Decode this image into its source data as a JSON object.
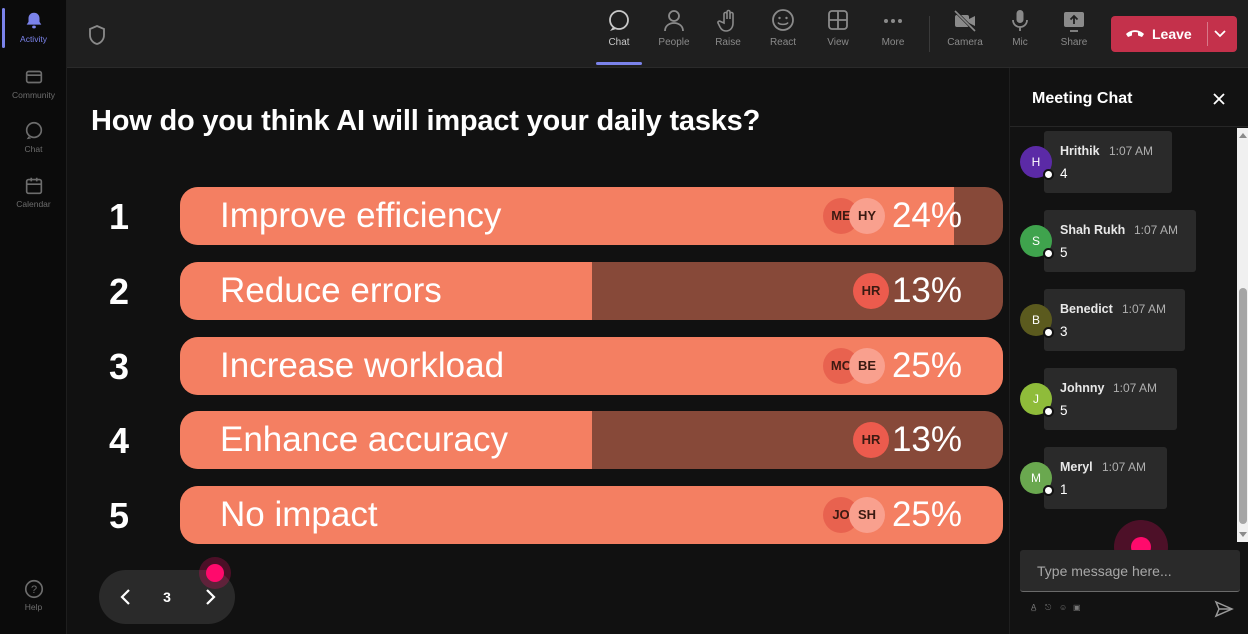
{
  "rail": {
    "items": [
      {
        "label": "Activity",
        "icon": "bell-icon"
      },
      {
        "label": "Community",
        "icon": "community-icon"
      },
      {
        "label": "Chat",
        "icon": "chat-icon"
      },
      {
        "label": "Calendar",
        "icon": "calendar-icon"
      },
      {
        "label": "Help",
        "icon": "help-icon"
      }
    ]
  },
  "toolbar": {
    "chat": "Chat",
    "people": "People",
    "raise": "Raise",
    "react": "React",
    "view": "View",
    "more": "More",
    "camera": "Camera",
    "mic": "Mic",
    "share": "Share",
    "leave": "Leave"
  },
  "poll": {
    "question": "How do you think AI will impact your daily tasks?",
    "options": [
      {
        "num": "1",
        "label": "Improve efficiency",
        "pct_text": "24%",
        "fill": 0.94,
        "avatars": [
          "ME",
          "HY"
        ]
      },
      {
        "num": "2",
        "label": "Reduce errors",
        "pct_text": "13%",
        "fill": 0.5,
        "avatars": [
          "HR"
        ]
      },
      {
        "num": "3",
        "label": "Increase workload",
        "pct_text": "25%",
        "fill": 1.0,
        "avatars": [
          "MC",
          "BE"
        ]
      },
      {
        "num": "4",
        "label": "Enhance accuracy",
        "pct_text": "13%",
        "fill": 0.5,
        "avatars": [
          "HR"
        ]
      },
      {
        "num": "5",
        "label": "No impact",
        "pct_text": "25%",
        "fill": 1.0,
        "avatars": [
          "JO",
          "SH"
        ]
      }
    ],
    "page": "3"
  },
  "chat": {
    "title": "Meeting Chat",
    "messages": [
      {
        "initial": "H",
        "name": "Hrithik",
        "time": "1:07 AM",
        "body": "4",
        "color": "#5b2aa6"
      },
      {
        "initial": "S",
        "name": "Shah Rukh",
        "time": "1:07 AM",
        "body": "5",
        "color": "#3fa34d"
      },
      {
        "initial": "B",
        "name": "Benedict",
        "time": "1:07 AM",
        "body": "3",
        "color": "#5b5a1e"
      },
      {
        "initial": "J",
        "name": "Johnny",
        "time": "1:07 AM",
        "body": "5",
        "color": "#8fbc3a"
      },
      {
        "initial": "M",
        "name": "Meryl",
        "time": "1:07 AM",
        "body": "1",
        "color": "#6aa84f"
      }
    ],
    "placeholder": "Type message here..."
  },
  "colors": {
    "bar_fill": "#f47f62",
    "bar_track": "#874939",
    "leave": "#c4314b",
    "accent": "#7b83eb",
    "cursor": "#ff0a6c"
  }
}
